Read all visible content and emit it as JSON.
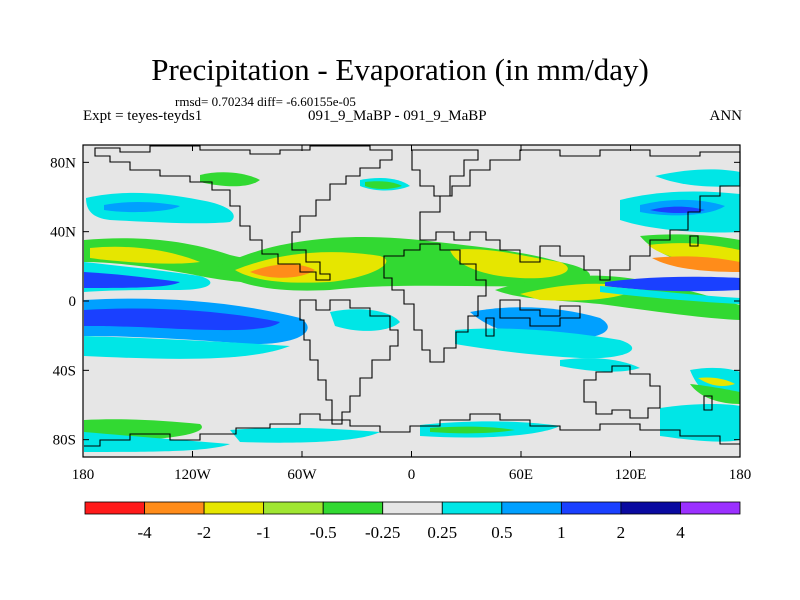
{
  "chart_data": {
    "type": "contour-map",
    "title": "Precipitation - Evaporation (in mm/day)",
    "stats_line": "rmsd= 0.70234 diff= -6.60155e-05",
    "experiment": "Expt = teyes-teyds1",
    "cases": "091_9_MaBP - 091_9_MaBP",
    "season": "ANN",
    "x_ticks": [
      {
        "lon": -180,
        "label": "180"
      },
      {
        "lon": -120,
        "label": "120W"
      },
      {
        "lon": -60,
        "label": "60W"
      },
      {
        "lon": 0,
        "label": "0"
      },
      {
        "lon": 60,
        "label": "60E"
      },
      {
        "lon": 120,
        "label": "120E"
      },
      {
        "lon": 180,
        "label": "180"
      }
    ],
    "y_ticks": [
      {
        "lat": 80,
        "label": "80N"
      },
      {
        "lat": 40,
        "label": "40N"
      },
      {
        "lat": 0,
        "label": "0"
      },
      {
        "lat": -40,
        "label": "40S"
      },
      {
        "lat": -80,
        "label": "80S"
      }
    ],
    "xlim": [
      -180,
      180
    ],
    "ylim": [
      -90,
      90
    ],
    "colorbar": {
      "colors": [
        "#ff1a1a",
        "#ff8c1a",
        "#e6e600",
        "#a0e632",
        "#32d932",
        "#e6e6e6",
        "#00e6e6",
        "#00a0ff",
        "#1a40ff",
        "#0a0aa0",
        "#9b30ff"
      ],
      "labels": [
        "-4",
        "-2",
        "-1",
        "-0.5",
        "-0.25",
        "0.25",
        "0.5",
        "1",
        "2",
        "4"
      ]
    },
    "palette": {
      "background": "#e6e6e6",
      "coast": "#000000"
    }
  }
}
